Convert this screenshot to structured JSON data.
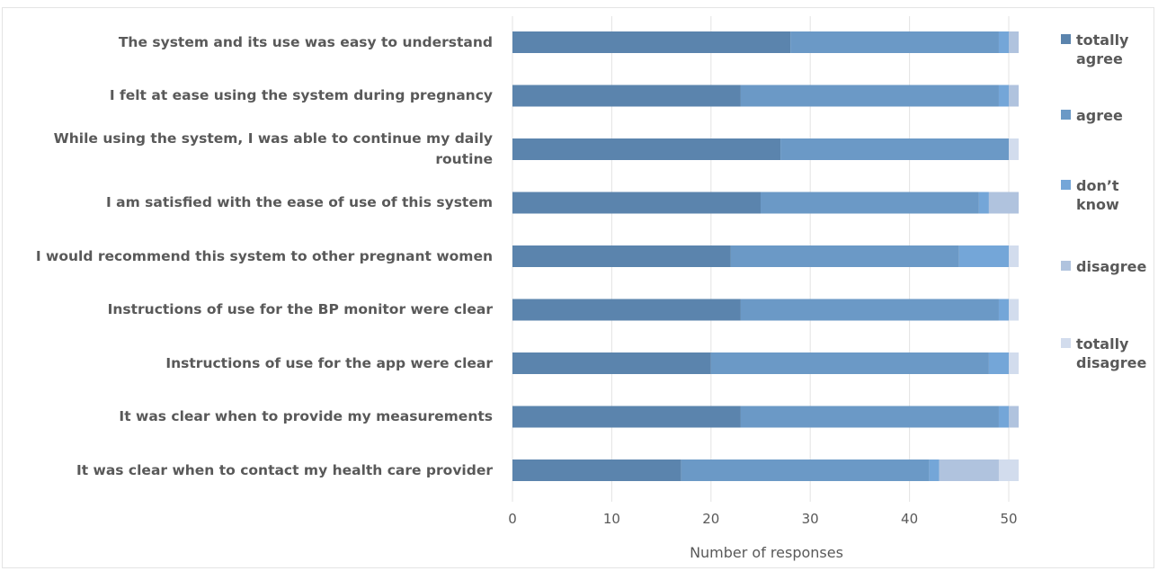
{
  "chart_data": {
    "type": "bar",
    "orientation": "horizontal",
    "stacked": true,
    "categories": [
      "The system and its use was easy to understand",
      "I felt at ease using the system during pregnancy",
      "While using the system, I was able to continue my daily routine",
      "I am satisfied with the ease of use of this system",
      "I would recommend this system to other pregnant women",
      "Instructions of use for the BP monitor were clear",
      "Instructions of use for the app were clear",
      "It was clear when to provide my measurements",
      "It was clear when to contact my health care provider"
    ],
    "series": [
      {
        "name": "totally agree",
        "color": "#5b84ad",
        "values": [
          28,
          23,
          27,
          25,
          22,
          23,
          20,
          23,
          17
        ]
      },
      {
        "name": "agree",
        "color": "#6b99c6",
        "values": [
          21,
          26,
          23,
          22,
          23,
          26,
          28,
          26,
          25
        ]
      },
      {
        "name": "don’t know",
        "color": "#74a6d8",
        "values": [
          1,
          1,
          0,
          1,
          5,
          1,
          2,
          1,
          1
        ]
      },
      {
        "name": "disagree",
        "color": "#b0c3de",
        "values": [
          1,
          1,
          0,
          3,
          0,
          0,
          0,
          1,
          6
        ]
      },
      {
        "name": "totally disagree",
        "color": "#d2dced",
        "values": [
          0,
          0,
          1,
          0,
          1,
          1,
          1,
          0,
          2
        ]
      }
    ],
    "xlabel": "Number of responses",
    "ylabel": "",
    "xlim": [
      0,
      50
    ],
    "xticks": [
      "0",
      "10",
      "20",
      "30",
      "40",
      "50"
    ],
    "grid": true,
    "legend_position": "right"
  }
}
